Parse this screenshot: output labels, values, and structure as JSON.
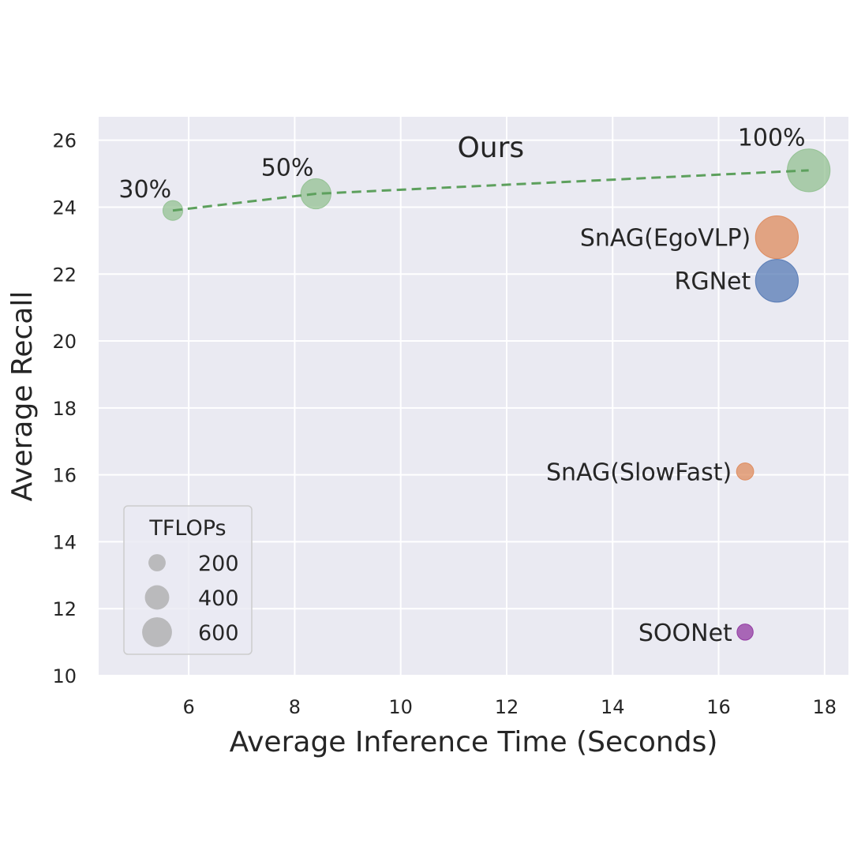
{
  "chart_data": {
    "type": "scatter",
    "subtype": "bubble",
    "xlabel": "Average Inference Time (Seconds)",
    "ylabel": "Average Recall",
    "xlim": [
      4.3,
      18.45
    ],
    "ylim": [
      10,
      26.7
    ],
    "xticks": [
      6,
      8,
      10,
      12,
      14,
      16,
      18
    ],
    "yticks": [
      10,
      12,
      14,
      16,
      18,
      20,
      22,
      24,
      26
    ],
    "grid": true,
    "background": "#eaeaf2",
    "points": [
      {
        "label": "30%",
        "x": 5.7,
        "y": 23.9,
        "tflops": 60,
        "color": "#8dbe8c"
      },
      {
        "label": "50%",
        "x": 8.4,
        "y": 24.4,
        "tflops": 140,
        "color": "#8dbe8c"
      },
      {
        "label": "100%",
        "x": 17.7,
        "y": 25.1,
        "tflops": 280,
        "color": "#8dbe8c"
      },
      {
        "label": "SnAG(EgoVLP)",
        "x": 17.1,
        "y": 23.1,
        "tflops": 280,
        "color": "#dd8452"
      },
      {
        "label": "RGNet",
        "x": 17.1,
        "y": 21.8,
        "tflops": 280,
        "color": "#4c72b0"
      },
      {
        "label": "SnAG(SlowFast)",
        "x": 16.5,
        "y": 16.1,
        "tflops": 45,
        "color": "#dd8452"
      },
      {
        "label": "SOONet",
        "x": 16.5,
        "y": 11.3,
        "tflops": 40,
        "color": "#8c2d9c"
      }
    ],
    "line": {
      "series": "Ours",
      "x": [
        5.7,
        8.4,
        17.7
      ],
      "y": [
        23.9,
        24.4,
        25.1
      ],
      "color": "#5da05d",
      "style": "dashed"
    },
    "annotations": [
      {
        "text": "Ours",
        "x": 11.7,
        "y": 25.5
      }
    ],
    "legend": {
      "title": "TFLOPs",
      "placement": "lower-left",
      "entries": [
        {
          "label": "200",
          "tflops": 200
        },
        {
          "label": "400",
          "tflops": 400
        },
        {
          "label": "600",
          "tflops": 600
        }
      ],
      "color": "#a9a9a9"
    }
  }
}
